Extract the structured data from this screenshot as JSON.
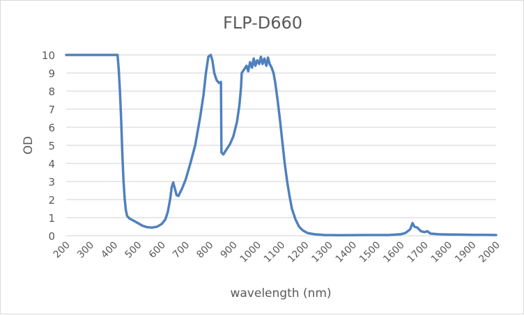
{
  "chart_data": {
    "type": "line",
    "title": "FLP-D660",
    "xlabel": "wavelength (nm)",
    "ylabel": "OD",
    "xlim": [
      200,
      2000
    ],
    "ylim": [
      0,
      10
    ],
    "x_ticks": [
      200,
      300,
      400,
      500,
      600,
      700,
      800,
      900,
      1000,
      1100,
      1200,
      1300,
      1400,
      1500,
      1600,
      1700,
      1800,
      1900,
      2000
    ],
    "y_ticks": [
      0,
      1,
      2,
      3,
      4,
      5,
      6,
      7,
      8,
      9,
      10
    ],
    "grid": "horizontal",
    "legend": "none",
    "series": [
      {
        "name": "FLP-D660",
        "color": "#4f81bd",
        "points": [
          [
            200,
            10
          ],
          [
            300,
            10
          ],
          [
            400,
            10
          ],
          [
            415,
            10
          ],
          [
            420,
            9.2
          ],
          [
            425,
            8.0
          ],
          [
            430,
            6.5
          ],
          [
            435,
            4.5
          ],
          [
            440,
            3.0
          ],
          [
            445,
            2.0
          ],
          [
            450,
            1.4
          ],
          [
            455,
            1.1
          ],
          [
            465,
            0.95
          ],
          [
            480,
            0.85
          ],
          [
            500,
            0.7
          ],
          [
            520,
            0.55
          ],
          [
            540,
            0.47
          ],
          [
            560,
            0.45
          ],
          [
            580,
            0.5
          ],
          [
            600,
            0.65
          ],
          [
            615,
            0.9
          ],
          [
            625,
            1.3
          ],
          [
            635,
            2.0
          ],
          [
            642,
            2.7
          ],
          [
            648,
            2.95
          ],
          [
            655,
            2.6
          ],
          [
            662,
            2.25
          ],
          [
            670,
            2.2
          ],
          [
            685,
            2.6
          ],
          [
            700,
            3.1
          ],
          [
            720,
            4.0
          ],
          [
            740,
            5.0
          ],
          [
            760,
            6.5
          ],
          [
            775,
            7.8
          ],
          [
            785,
            9.0
          ],
          [
            795,
            9.9
          ],
          [
            805,
            10.0
          ],
          [
            812,
            9.7
          ],
          [
            820,
            9.0
          ],
          [
            830,
            8.6
          ],
          [
            840,
            8.45
          ],
          [
            848,
            8.5
          ],
          [
            850,
            4.6
          ],
          [
            858,
            4.5
          ],
          [
            870,
            4.75
          ],
          [
            885,
            5.05
          ],
          [
            900,
            5.5
          ],
          [
            915,
            6.3
          ],
          [
            925,
            7.2
          ],
          [
            932,
            8.2
          ],
          [
            935,
            9.0
          ],
          [
            945,
            9.2
          ],
          [
            955,
            9.4
          ],
          [
            962,
            9.1
          ],
          [
            970,
            9.6
          ],
          [
            978,
            9.3
          ],
          [
            985,
            9.8
          ],
          [
            992,
            9.4
          ],
          [
            1000,
            9.7
          ],
          [
            1008,
            9.5
          ],
          [
            1015,
            9.9
          ],
          [
            1022,
            9.5
          ],
          [
            1030,
            9.8
          ],
          [
            1038,
            9.4
          ],
          [
            1045,
            9.85
          ],
          [
            1052,
            9.5
          ],
          [
            1060,
            9.3
          ],
          [
            1068,
            9.0
          ],
          [
            1075,
            8.5
          ],
          [
            1085,
            7.5
          ],
          [
            1095,
            6.4
          ],
          [
            1105,
            5.2
          ],
          [
            1115,
            4.0
          ],
          [
            1125,
            3.0
          ],
          [
            1135,
            2.2
          ],
          [
            1145,
            1.5
          ],
          [
            1160,
            0.9
          ],
          [
            1175,
            0.5
          ],
          [
            1190,
            0.3
          ],
          [
            1210,
            0.15
          ],
          [
            1240,
            0.08
          ],
          [
            1280,
            0.04
          ],
          [
            1350,
            0.03
          ],
          [
            1450,
            0.04
          ],
          [
            1550,
            0.04
          ],
          [
            1600,
            0.08
          ],
          [
            1620,
            0.15
          ],
          [
            1640,
            0.35
          ],
          [
            1650,
            0.7
          ],
          [
            1658,
            0.5
          ],
          [
            1670,
            0.45
          ],
          [
            1685,
            0.25
          ],
          [
            1700,
            0.2
          ],
          [
            1712,
            0.25
          ],
          [
            1725,
            0.12
          ],
          [
            1760,
            0.08
          ],
          [
            1800,
            0.07
          ],
          [
            1850,
            0.06
          ],
          [
            1900,
            0.05
          ],
          [
            1950,
            0.05
          ],
          [
            2000,
            0.04
          ]
        ]
      }
    ]
  },
  "gridline_color": "#d9d9d9",
  "text_color": "#595959"
}
